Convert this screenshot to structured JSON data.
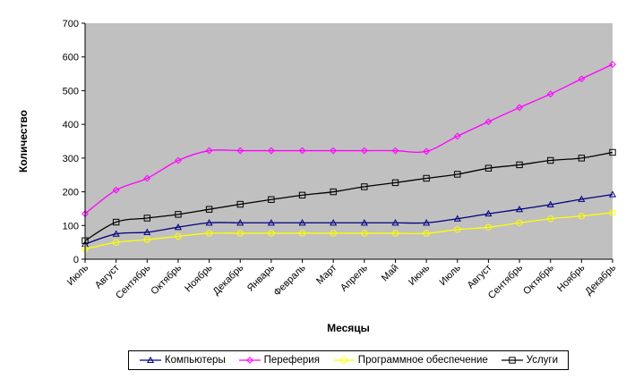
{
  "chart_data": {
    "type": "line",
    "xlabel": "Месяцы",
    "ylabel": "Количество",
    "ylim": [
      0,
      700
    ],
    "yticks": [
      0,
      100,
      200,
      300,
      400,
      500,
      600,
      700
    ],
    "grid": false,
    "legend_position": "bottom",
    "plot_background": "#c0c0c0",
    "categories": [
      "Июль",
      "Август",
      "Сентябрь",
      "Октябрь",
      "Ноябрь",
      "Декабрь",
      "Январь",
      "Февраль",
      "Март",
      "Апрель",
      "Май",
      "Июнь",
      "Июль",
      "Август",
      "Сентябрь",
      "Октябрь",
      "Ноябрь",
      "Декабрь"
    ],
    "series": [
      {
        "name": "Компьютеры",
        "color": "#000080",
        "marker": "triangle",
        "values": [
          45,
          75,
          80,
          95,
          108,
          108,
          108,
          108,
          108,
          108,
          108,
          108,
          120,
          135,
          148,
          162,
          178,
          192
        ]
      },
      {
        "name": "Переферия",
        "color": "#ff00ff",
        "marker": "diamond",
        "values": [
          135,
          205,
          240,
          293,
          322,
          322,
          322,
          322,
          322,
          322,
          322,
          320,
          365,
          408,
          450,
          490,
          535,
          578
        ]
      },
      {
        "name": "Программное обеспечение",
        "color": "#ffff00",
        "marker": "circle",
        "values": [
          30,
          50,
          58,
          68,
          77,
          77,
          77,
          77,
          77,
          77,
          77,
          77,
          88,
          95,
          108,
          120,
          128,
          138
        ]
      },
      {
        "name": "Услуги",
        "color": "#000000",
        "marker": "square",
        "values": [
          55,
          110,
          122,
          133,
          148,
          163,
          177,
          190,
          200,
          215,
          227,
          240,
          252,
          270,
          280,
          293,
          300,
          317
        ]
      }
    ]
  }
}
